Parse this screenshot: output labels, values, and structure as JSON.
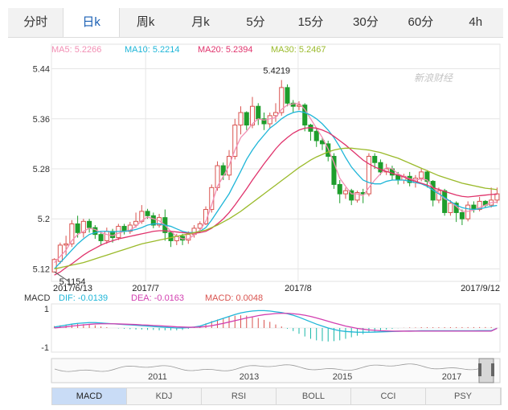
{
  "period_tabs": [
    "分时",
    "日k",
    "周k",
    "月k",
    "5分",
    "15分",
    "30分",
    "60分",
    "4h"
  ],
  "active_period_tab": 1,
  "watermark": "新浪财经",
  "ma_legend": [
    {
      "label": "MA5: 5.2266",
      "color": "#f28fb4"
    },
    {
      "label": "MA10: 5.2214",
      "color": "#1fb6d8"
    },
    {
      "label": "MA20: 5.2394",
      "color": "#e0336c"
    },
    {
      "label": "MA30: 5.2467",
      "color": "#9aba2a"
    }
  ],
  "max_label": "5.4219",
  "min_label": "5.1154",
  "y_tick_labels": [
    "5.44",
    "5.36",
    "5.28",
    "5.2",
    "5.12"
  ],
  "x_labels": [
    "2017/6/13",
    "2017/7",
    "2017/8",
    "2017/9/12"
  ],
  "macd_legend": {
    "title": "MACD",
    "dif": "DIF: -0.0139",
    "dea": "DEA: -0.0163",
    "macd": "MACD: 0.0048"
  },
  "macd_y_labels": [
    "1",
    "-1"
  ],
  "nav_year_labels": [
    "2011",
    "2013",
    "2015",
    "2017"
  ],
  "indicator_tabs": [
    "MACD",
    "KDJ",
    "RSI",
    "BOLL",
    "CCI",
    "PSY"
  ],
  "active_indicator_tab": 0,
  "colors": {
    "up": "#d9534f",
    "down": "#1e9e2c",
    "dif": "#1fb6d8",
    "dea": "#d23fb0",
    "grid": "#e6e6e6"
  },
  "chart_data": {
    "type": "candlestick",
    "title": "",
    "x_range": [
      "2017/6/13",
      "2017/9/12"
    ],
    "y_axis": {
      "ticks": [
        5.44,
        5.36,
        5.28,
        5.2,
        5.12
      ],
      "range": [
        5.1,
        5.46
      ]
    },
    "candles": [
      [
        5.115,
        5.135,
        5.137,
        5.115
      ],
      [
        5.132,
        5.158,
        5.162,
        5.128
      ],
      [
        5.158,
        5.16,
        5.173,
        5.142
      ],
      [
        5.16,
        5.192,
        5.198,
        5.155
      ],
      [
        5.192,
        5.178,
        5.205,
        5.17
      ],
      [
        5.178,
        5.196,
        5.2,
        5.17
      ],
      [
        5.196,
        5.186,
        5.2,
        5.178
      ],
      [
        5.186,
        5.175,
        5.19,
        5.168
      ],
      [
        5.175,
        5.165,
        5.18,
        5.158
      ],
      [
        5.165,
        5.18,
        5.186,
        5.16
      ],
      [
        5.18,
        5.17,
        5.184,
        5.162
      ],
      [
        5.17,
        5.188,
        5.192,
        5.166
      ],
      [
        5.188,
        5.18,
        5.192,
        5.175
      ],
      [
        5.18,
        5.19,
        5.195,
        5.176
      ],
      [
        5.19,
        5.196,
        5.21,
        5.186
      ],
      [
        5.196,
        5.212,
        5.222,
        5.192
      ],
      [
        5.212,
        5.205,
        5.216,
        5.2
      ],
      [
        5.205,
        5.19,
        5.21,
        5.185
      ],
      [
        5.19,
        5.202,
        5.208,
        5.186
      ],
      [
        5.202,
        5.178,
        5.215,
        5.165
      ],
      [
        5.178,
        5.165,
        5.18,
        5.155
      ],
      [
        5.165,
        5.172,
        5.176,
        5.158
      ],
      [
        5.172,
        5.166,
        5.176,
        5.158
      ],
      [
        5.166,
        5.175,
        5.18,
        5.16
      ],
      [
        5.175,
        5.185,
        5.19,
        5.17
      ],
      [
        5.185,
        5.192,
        5.196,
        5.178
      ],
      [
        5.192,
        5.215,
        5.22,
        5.19
      ],
      [
        5.215,
        5.25,
        5.255,
        5.21
      ],
      [
        5.25,
        5.285,
        5.292,
        5.245
      ],
      [
        5.285,
        5.27,
        5.29,
        5.262
      ],
      [
        5.27,
        5.3,
        5.31,
        5.262
      ],
      [
        5.3,
        5.35,
        5.36,
        5.295
      ],
      [
        5.35,
        5.37,
        5.38,
        5.335
      ],
      [
        5.37,
        5.35,
        5.372,
        5.342
      ],
      [
        5.35,
        5.38,
        5.395,
        5.345
      ],
      [
        5.38,
        5.36,
        5.385,
        5.35
      ],
      [
        5.36,
        5.352,
        5.37,
        5.342
      ],
      [
        5.352,
        5.365,
        5.37,
        5.345
      ],
      [
        5.365,
        5.37,
        5.385,
        5.355
      ],
      [
        5.37,
        5.41,
        5.422,
        5.365
      ],
      [
        5.41,
        5.385,
        5.415,
        5.38
      ],
      [
        5.385,
        5.38,
        5.39,
        5.37
      ],
      [
        5.38,
        5.382,
        5.388,
        5.374
      ],
      [
        5.382,
        5.35,
        5.385,
        5.34
      ],
      [
        5.35,
        5.34,
        5.352,
        5.325
      ],
      [
        5.34,
        5.325,
        5.345,
        5.315
      ],
      [
        5.325,
        5.32,
        5.33,
        5.31
      ],
      [
        5.32,
        5.3,
        5.325,
        5.292
      ],
      [
        5.3,
        5.255,
        5.305,
        5.248
      ],
      [
        5.255,
        5.24,
        5.262,
        5.225
      ],
      [
        5.24,
        5.245,
        5.25,
        5.232
      ],
      [
        5.245,
        5.23,
        5.248,
        5.222
      ],
      [
        5.23,
        5.242,
        5.245,
        5.226
      ],
      [
        5.242,
        5.24,
        5.248,
        5.225
      ],
      [
        5.24,
        5.3,
        5.305,
        5.236
      ],
      [
        5.3,
        5.29,
        5.305,
        5.28
      ],
      [
        5.29,
        5.275,
        5.295,
        5.27
      ],
      [
        5.275,
        5.28,
        5.288,
        5.27
      ],
      [
        5.28,
        5.27,
        5.285,
        5.262
      ],
      [
        5.27,
        5.262,
        5.275,
        5.255
      ],
      [
        5.262,
        5.268,
        5.272,
        5.256
      ],
      [
        5.268,
        5.258,
        5.275,
        5.252
      ],
      [
        5.258,
        5.265,
        5.27,
        5.25
      ],
      [
        5.265,
        5.275,
        5.28,
        5.26
      ],
      [
        5.275,
        5.26,
        5.278,
        5.25
      ],
      [
        5.26,
        5.23,
        5.262,
        5.22
      ],
      [
        5.23,
        5.245,
        5.25,
        5.225
      ],
      [
        5.245,
        5.21,
        5.248,
        5.205
      ],
      [
        5.21,
        5.225,
        5.23,
        5.205
      ],
      [
        5.225,
        5.21,
        5.228,
        5.195
      ],
      [
        5.21,
        5.2,
        5.215,
        5.19
      ],
      [
        5.2,
        5.222,
        5.228,
        5.196
      ],
      [
        5.222,
        5.215,
        5.228,
        5.21
      ],
      [
        5.215,
        5.228,
        5.235,
        5.212
      ],
      [
        5.228,
        5.222,
        5.23,
        5.218
      ],
      [
        5.222,
        5.23,
        5.25,
        5.218
      ],
      [
        5.23,
        5.24,
        5.25,
        5.225
      ]
    ],
    "ma5": [
      5.13,
      5.14,
      5.15,
      5.165,
      5.175,
      5.18,
      5.185,
      5.183,
      5.178,
      5.175,
      5.173,
      5.177,
      5.18,
      5.182,
      5.188,
      5.197,
      5.203,
      5.2,
      5.197,
      5.19,
      5.18,
      5.172,
      5.168,
      5.168,
      5.174,
      5.182,
      5.196,
      5.222,
      5.252,
      5.268,
      5.285,
      5.31,
      5.33,
      5.34,
      5.352,
      5.36,
      5.358,
      5.36,
      5.362,
      5.375,
      5.382,
      5.384,
      5.385,
      5.375,
      5.36,
      5.345,
      5.33,
      5.312,
      5.29,
      5.265,
      5.252,
      5.24,
      5.24,
      5.237,
      5.25,
      5.262,
      5.272,
      5.282,
      5.28,
      5.272,
      5.268,
      5.264,
      5.262,
      5.264,
      5.262,
      5.25,
      5.242,
      5.232,
      5.228,
      5.22,
      5.212,
      5.212,
      5.214,
      5.218,
      5.222,
      5.226,
      5.2266
    ],
    "ma10": [
      5.12,
      5.13,
      5.14,
      5.15,
      5.16,
      5.168,
      5.175,
      5.178,
      5.18,
      5.18,
      5.179,
      5.18,
      5.18,
      5.181,
      5.183,
      5.186,
      5.19,
      5.192,
      5.192,
      5.19,
      5.188,
      5.184,
      5.18,
      5.178,
      5.178,
      5.18,
      5.186,
      5.198,
      5.212,
      5.226,
      5.24,
      5.258,
      5.276,
      5.295,
      5.31,
      5.323,
      5.334,
      5.345,
      5.352,
      5.36,
      5.366,
      5.37,
      5.372,
      5.37,
      5.366,
      5.36,
      5.352,
      5.342,
      5.33,
      5.315,
      5.298,
      5.283,
      5.272,
      5.262,
      5.258,
      5.256,
      5.256,
      5.26,
      5.262,
      5.262,
      5.262,
      5.26,
      5.258,
      5.256,
      5.252,
      5.246,
      5.24,
      5.234,
      5.228,
      5.222,
      5.218,
      5.216,
      5.215,
      5.216,
      5.218,
      5.22,
      5.2214
    ],
    "ma20": [
      5.11,
      5.115,
      5.122,
      5.128,
      5.135,
      5.142,
      5.148,
      5.153,
      5.158,
      5.162,
      5.165,
      5.168,
      5.17,
      5.172,
      5.174,
      5.176,
      5.178,
      5.18,
      5.181,
      5.181,
      5.18,
      5.179,
      5.178,
      5.177,
      5.177,
      5.178,
      5.18,
      5.185,
      5.192,
      5.2,
      5.21,
      5.222,
      5.235,
      5.248,
      5.262,
      5.275,
      5.288,
      5.3,
      5.312,
      5.322,
      5.33,
      5.337,
      5.342,
      5.345,
      5.346,
      5.345,
      5.342,
      5.338,
      5.332,
      5.325,
      5.318,
      5.31,
      5.302,
      5.294,
      5.288,
      5.283,
      5.279,
      5.276,
      5.273,
      5.27,
      5.267,
      5.263,
      5.26,
      5.257,
      5.254,
      5.25,
      5.247,
      5.244,
      5.241,
      5.238,
      5.236,
      5.235,
      5.236,
      5.237,
      5.238,
      5.239,
      5.2394
    ],
    "ma30": [
      5.12,
      5.122,
      5.124,
      5.126,
      5.128,
      5.13,
      5.133,
      5.136,
      5.139,
      5.142,
      5.145,
      5.148,
      5.151,
      5.154,
      5.157,
      5.16,
      5.162,
      5.164,
      5.166,
      5.168,
      5.17,
      5.172,
      5.174,
      5.176,
      5.178,
      5.18,
      5.182,
      5.186,
      5.19,
      5.195,
      5.2,
      5.206,
      5.212,
      5.219,
      5.226,
      5.233,
      5.24,
      5.247,
      5.254,
      5.261,
      5.268,
      5.275,
      5.282,
      5.288,
      5.294,
      5.299,
      5.303,
      5.307,
      5.31,
      5.312,
      5.313,
      5.313,
      5.312,
      5.311,
      5.31,
      5.308,
      5.306,
      5.303,
      5.3,
      5.297,
      5.293,
      5.289,
      5.285,
      5.281,
      5.277,
      5.273,
      5.269,
      5.266,
      5.263,
      5.26,
      5.257,
      5.255,
      5.253,
      5.251,
      5.249,
      5.248,
      5.2467
    ],
    "macd_panel": {
      "y_labels": [
        1,
        -1
      ],
      "dif": [
        0.05,
        0.1,
        0.15,
        0.2,
        0.24,
        0.26,
        0.28,
        0.28,
        0.26,
        0.24,
        0.22,
        0.2,
        0.18,
        0.16,
        0.14,
        0.12,
        0.1,
        0.08,
        0.06,
        0.04,
        0.02,
        0.0,
        0.0,
        0.02,
        0.05,
        0.1,
        0.2,
        0.3,
        0.4,
        0.5,
        0.6,
        0.7,
        0.78,
        0.84,
        0.88,
        0.9,
        0.9,
        0.88,
        0.84,
        0.8,
        0.74,
        0.66,
        0.56,
        0.44,
        0.32,
        0.2,
        0.1,
        0.0,
        -0.08,
        -0.14,
        -0.18,
        -0.2,
        -0.22,
        -0.22,
        -0.22,
        -0.21,
        -0.2,
        -0.19,
        -0.18,
        -0.17,
        -0.16,
        -0.15,
        -0.15,
        -0.14,
        -0.14,
        -0.14,
        -0.14,
        -0.14,
        -0.14,
        -0.14,
        -0.14,
        -0.14,
        -0.14,
        -0.139,
        -0.139,
        -0.139,
        -0.0139
      ],
      "dea": [
        0.0,
        0.03,
        0.06,
        0.1,
        0.13,
        0.16,
        0.19,
        0.21,
        0.22,
        0.22,
        0.22,
        0.21,
        0.2,
        0.19,
        0.18,
        0.16,
        0.15,
        0.13,
        0.12,
        0.1,
        0.08,
        0.06,
        0.05,
        0.04,
        0.04,
        0.05,
        0.08,
        0.12,
        0.18,
        0.24,
        0.31,
        0.38,
        0.45,
        0.52,
        0.58,
        0.64,
        0.69,
        0.72,
        0.75,
        0.76,
        0.76,
        0.74,
        0.71,
        0.66,
        0.6,
        0.52,
        0.44,
        0.35,
        0.26,
        0.18,
        0.1,
        0.04,
        -0.02,
        -0.06,
        -0.1,
        -0.12,
        -0.14,
        -0.15,
        -0.16,
        -0.165,
        -0.165,
        -0.165,
        -0.163,
        -0.162,
        -0.161,
        -0.16,
        -0.16,
        -0.16,
        -0.162,
        -0.163,
        -0.163,
        -0.163,
        -0.163,
        -0.163,
        -0.163,
        -0.163,
        -0.0163
      ]
    }
  }
}
